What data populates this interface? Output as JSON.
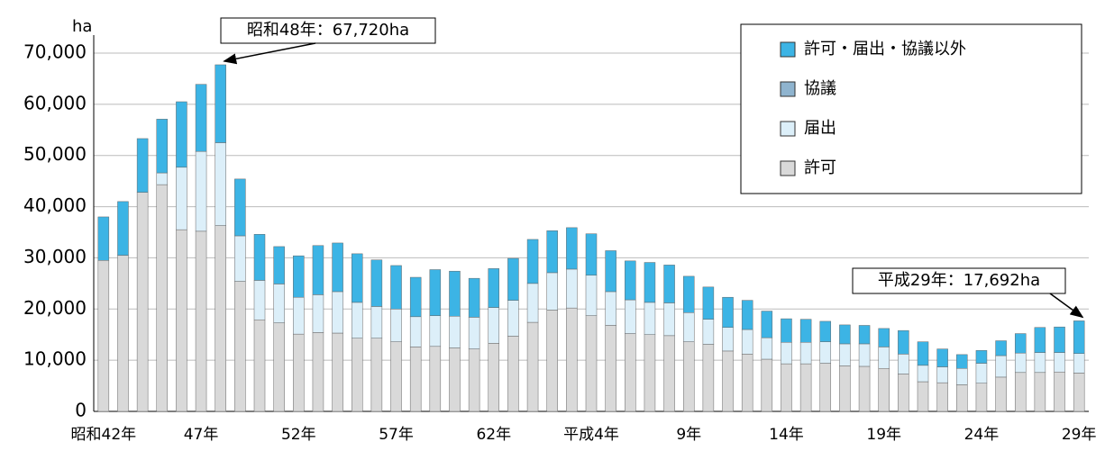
{
  "chart_data": {
    "type": "bar",
    "stacked": true,
    "y_label": "ha",
    "categories": [
      "昭和42年",
      null,
      null,
      null,
      null,
      "47年",
      null,
      null,
      null,
      null,
      "52年",
      null,
      null,
      null,
      null,
      "57年",
      null,
      null,
      null,
      null,
      "62年",
      null,
      null,
      null,
      null,
      "平成4年",
      null,
      null,
      null,
      null,
      "9年",
      null,
      null,
      null,
      null,
      "14年",
      null,
      null,
      null,
      null,
      "19年",
      null,
      null,
      null,
      null,
      "24年",
      null,
      null,
      null,
      null,
      "29年"
    ],
    "series": [
      {
        "name": "許可",
        "color": "#d9d9d9",
        "values": [
          29500,
          30500,
          42800,
          44300,
          35500,
          35200,
          36300,
          25400,
          17900,
          17300,
          15100,
          15400,
          15300,
          14300,
          14300,
          13600,
          12600,
          12700,
          12400,
          12200,
          13300,
          14700,
          17400,
          19800,
          20200,
          18700,
          16800,
          15200,
          15000,
          14800,
          13600,
          13100,
          11800,
          11200,
          10200,
          9300,
          9300,
          9400,
          8900,
          8800,
          8400,
          7300,
          5800,
          5600,
          5200,
          5500,
          6700,
          7600,
          7600,
          7700,
          7500
        ]
      },
      {
        "name": "届出",
        "color": "#dceff9",
        "values": [
          0,
          0,
          0,
          2300,
          12200,
          15600,
          16200,
          8900,
          7700,
          7600,
          7200,
          7400,
          8100,
          7000,
          6200,
          6400,
          5900,
          6000,
          6200,
          6200,
          7000,
          7000,
          7600,
          7300,
          7600,
          7900,
          6600,
          6600,
          6300,
          6400,
          5700,
          4900,
          4600,
          4800,
          4200,
          4200,
          4200,
          4200,
          4300,
          4400,
          4200,
          3900,
          3200,
          3100,
          3200,
          3900,
          4200,
          3800,
          3900,
          3800,
          3800
        ]
      },
      {
        "name": "協議",
        "color": "#8fb4cf",
        "values": [
          0,
          0,
          0,
          0,
          0,
          0,
          0,
          0,
          0,
          0,
          0,
          0,
          0,
          0,
          0,
          0,
          0,
          0,
          0,
          0,
          0,
          0,
          0,
          0,
          0,
          0,
          0,
          0,
          0,
          0,
          0,
          0,
          0,
          0,
          0,
          0,
          0,
          0,
          0,
          0,
          0,
          0,
          0,
          0,
          0,
          0,
          0,
          0,
          0,
          0,
          0
        ]
      },
      {
        "name": "許可・届出・協議以外",
        "color": "#3cb4e5",
        "values": [
          8500,
          10500,
          10500,
          10500,
          12800,
          13100,
          15220,
          11100,
          9000,
          7300,
          8100,
          9600,
          9500,
          9500,
          9100,
          8500,
          7700,
          9000,
          8800,
          7600,
          7600,
          8200,
          8600,
          8200,
          8100,
          8100,
          8000,
          7600,
          7800,
          7400,
          7100,
          6300,
          5900,
          5700,
          5200,
          4600,
          4500,
          4000,
          3700,
          3600,
          3600,
          4600,
          4600,
          3500,
          2700,
          2500,
          2900,
          3800,
          4900,
          5000,
          6392
        ]
      }
    ],
    "ylim": [
      0,
      70000
    ],
    "yticks": [
      0,
      {
        "value": 10000,
        "label": "10,000"
      },
      {
        "value": 20000,
        "label": "20,000"
      },
      {
        "value": 30000,
        "label": "30,000"
      },
      {
        "value": 40000,
        "label": "40,000"
      },
      {
        "value": 50000,
        "label": "50,000"
      },
      {
        "value": 60000,
        "label": "60,000"
      },
      {
        "value": 70000,
        "label": "70,000"
      }
    ],
    "grid": true,
    "legend": "upper right",
    "annotations": [
      "昭和48年：67,720ha",
      "平成29年：17,692ha"
    ]
  }
}
